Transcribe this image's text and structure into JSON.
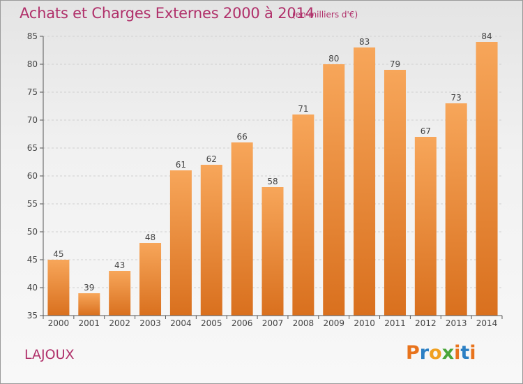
{
  "header": {
    "title": "Achats et Charges Externes 2000 à 2014",
    "subtitle": "(en milliers d'€)"
  },
  "footer": {
    "commune": "LAJOUX",
    "logo_text": "Proxiti",
    "logo_letter_colors": [
      "#e8731c",
      "#2b7fc4",
      "#f0a020",
      "#4aa63a",
      "#e8731c",
      "#2b7fc4",
      "#e8731c"
    ]
  },
  "colors": {
    "title": "#b0306a",
    "bar_light": "#f7a65a",
    "bar_dark": "#d9701e",
    "axis": "#555555",
    "grid": "#d0d0d0"
  },
  "chart_data": {
    "type": "bar",
    "title": "Achats et Charges Externes 2000 à 2014",
    "subtitle": "(en milliers d'€)",
    "categories": [
      "2000",
      "2001",
      "2002",
      "2003",
      "2004",
      "2005",
      "2006",
      "2007",
      "2008",
      "2009",
      "2010",
      "2011",
      "2012",
      "2013",
      "2014"
    ],
    "values": [
      45,
      39,
      43,
      48,
      61,
      62,
      66,
      58,
      71,
      80,
      83,
      79,
      67,
      73,
      84
    ],
    "ylim": [
      35,
      85
    ],
    "yticks": [
      35,
      40,
      45,
      50,
      55,
      60,
      65,
      70,
      75,
      80,
      85
    ],
    "grid": true,
    "xlabel": "",
    "ylabel": ""
  }
}
